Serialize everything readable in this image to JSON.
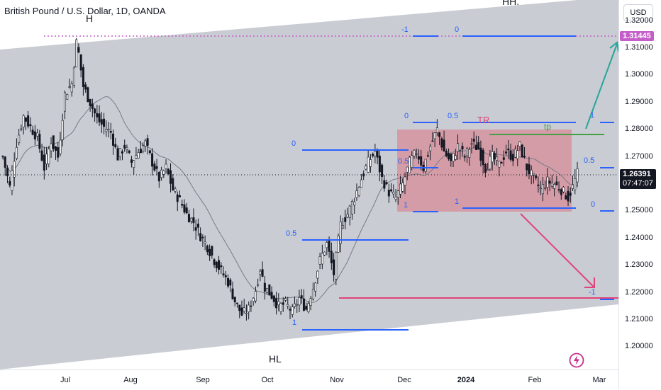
{
  "symbol": {
    "title": "British Pound / U.S. Dollar, 1D, OANDA"
  },
  "currency_button": "USD",
  "price_scale": {
    "ticks": [
      "1.32000",
      "1.31000",
      "1.30000",
      "1.29000",
      "1.28000",
      "1.27000",
      "1.26000",
      "1.25000",
      "1.24000",
      "1.23000",
      "1.22000",
      "1.21000",
      "1.20000"
    ],
    "tick_values": [
      1.32,
      1.31,
      1.3,
      1.29,
      1.28,
      1.27,
      1.26,
      1.25,
      1.24,
      1.23,
      1.22,
      1.21,
      1.2
    ],
    "level_label": "1.31445",
    "level_value": 1.31445,
    "last_price": "1.26391",
    "last_price_value": 1.26391,
    "countdown": "07:47:07"
  },
  "time_scale": {
    "labels": [
      {
        "text": "Jul",
        "bold": false
      },
      {
        "text": "Aug",
        "bold": false
      },
      {
        "text": "Sep",
        "bold": false
      },
      {
        "text": "Oct",
        "bold": false
      },
      {
        "text": "Nov",
        "bold": false
      },
      {
        "text": "Dec",
        "bold": false
      },
      {
        "text": "2024",
        "bold": true
      },
      {
        "text": "Feb",
        "bold": false
      },
      {
        "text": "Mar",
        "bold": false
      }
    ]
  },
  "annotations": {
    "hh_top": "HH.",
    "h": "H",
    "hl": "HL",
    "tr": "TR",
    "tp": "tp",
    "fib_labels": [
      "-1",
      "0",
      "0",
      "0.5",
      "1",
      "0",
      "0.5",
      "1",
      "0.5",
      "1",
      "0.5",
      "0",
      "-1",
      "1",
      "0.5",
      "1"
    ]
  },
  "colors": {
    "bull": "#ffffff",
    "bear": "#131722",
    "wedge": "#c3c6cd",
    "range_box": "#d6939f",
    "fib": "#2962ff",
    "ma": "#787b86",
    "support": "#e0447a",
    "tp_line": "#43a047",
    "forecast_up": "#26a69a",
    "forecast_down": "#e0447a",
    "level_dotted": "#c45ec9",
    "last_price_bg": "#131722"
  },
  "chart_data": {
    "type": "candlestick",
    "title": "British Pound / U.S. Dollar, 1D, OANDA",
    "x_labels": [
      "Jul",
      "Aug",
      "Sep",
      "Oct",
      "Nov",
      "Dec",
      "2024",
      "Feb",
      "Mar"
    ],
    "ylim": [
      1.195,
      1.325
    ],
    "key_levels": {
      "marked_high": 1.31445,
      "last": 1.26391,
      "range_top": 1.28,
      "range_bottom": 1.25,
      "tp": 1.278,
      "support": 1.2185
    },
    "close_path": [
      [
        0,
        1.27
      ],
      [
        3,
        1.259
      ],
      [
        6,
        1.275
      ],
      [
        9,
        1.285
      ],
      [
        12,
        1.281
      ],
      [
        15,
        1.277
      ],
      [
        18,
        1.266
      ],
      [
        21,
        1.276
      ],
      [
        24,
        1.27
      ],
      [
        27,
        1.293
      ],
      [
        30,
        1.297
      ],
      [
        32,
        1.312
      ],
      [
        33,
        1.308
      ],
      [
        35,
        1.296
      ],
      [
        38,
        1.29
      ],
      [
        41,
        1.284
      ],
      [
        44,
        1.281
      ],
      [
        47,
        1.279
      ],
      [
        50,
        1.27
      ],
      [
        53,
        1.274
      ],
      [
        56,
        1.268
      ],
      [
        59,
        1.272
      ],
      [
        62,
        1.275
      ],
      [
        65,
        1.268
      ],
      [
        68,
        1.262
      ],
      [
        71,
        1.266
      ],
      [
        74,
        1.258
      ],
      [
        77,
        1.254
      ],
      [
        80,
        1.249
      ],
      [
        83,
        1.246
      ],
      [
        86,
        1.241
      ],
      [
        89,
        1.237
      ],
      [
        92,
        1.232
      ],
      [
        95,
        1.228
      ],
      [
        98,
        1.224
      ],
      [
        101,
        1.217
      ],
      [
        104,
        1.212
      ],
      [
        107,
        1.214
      ],
      [
        110,
        1.221
      ],
      [
        112,
        1.229
      ],
      [
        114,
        1.222
      ],
      [
        117,
        1.219
      ],
      [
        120,
        1.215
      ],
      [
        123,
        1.216
      ],
      [
        126,
        1.213
      ],
      [
        129,
        1.218
      ],
      [
        132,
        1.214
      ],
      [
        135,
        1.222
      ],
      [
        138,
        1.232
      ],
      [
        141,
        1.238
      ],
      [
        144,
        1.227
      ],
      [
        147,
        1.245
      ],
      [
        150,
        1.249
      ],
      [
        153,
        1.255
      ],
      [
        156,
        1.262
      ],
      [
        159,
        1.268
      ],
      [
        162,
        1.272
      ],
      [
        165,
        1.262
      ],
      [
        168,
        1.257
      ],
      [
        171,
        1.255
      ],
      [
        174,
        1.26
      ],
      [
        177,
        1.268
      ],
      [
        180,
        1.272
      ],
      [
        183,
        1.266
      ],
      [
        186,
        1.274
      ],
      [
        189,
        1.28
      ],
      [
        192,
        1.272
      ],
      [
        195,
        1.268
      ],
      [
        198,
        1.274
      ],
      [
        201,
        1.27
      ],
      [
        204,
        1.275
      ],
      [
        207,
        1.273
      ],
      [
        210,
        1.266
      ],
      [
        213,
        1.27
      ],
      [
        216,
        1.267
      ],
      [
        219,
        1.272
      ],
      [
        222,
        1.27
      ],
      [
        225,
        1.274
      ],
      [
        228,
        1.266
      ],
      [
        231,
        1.262
      ],
      [
        234,
        1.258
      ],
      [
        237,
        1.261
      ],
      [
        240,
        1.26
      ],
      [
        243,
        1.258
      ],
      [
        246,
        1.255
      ],
      [
        248,
        1.259
      ],
      [
        250,
        1.2639
      ]
    ]
  }
}
